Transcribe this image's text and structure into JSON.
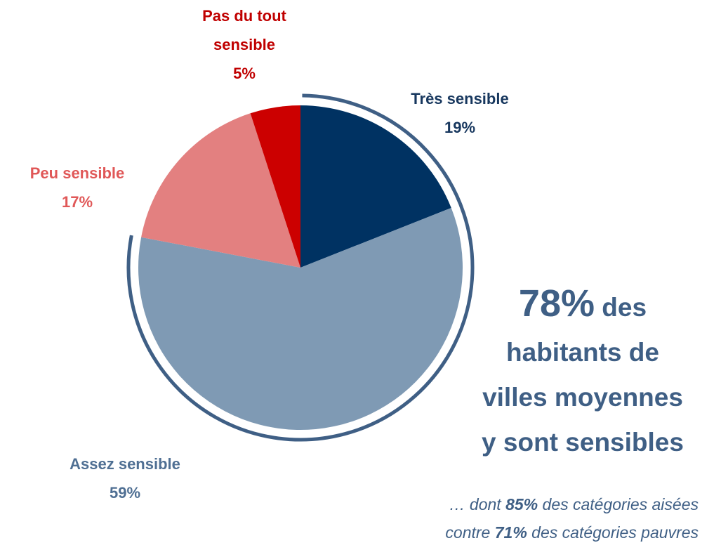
{
  "chart_data": {
    "type": "pie",
    "categories": [
      "Très sensible",
      "Assez sensible",
      "Peu sensible",
      "Pas du tout sensible"
    ],
    "values": [
      19,
      59,
      17,
      5
    ],
    "value_labels": [
      "19%",
      "59%",
      "17%",
      "5%"
    ],
    "colors": [
      "#003262",
      "#7f9ab4",
      "#e38080",
      "#cc0000"
    ],
    "label_colors": [
      "#17375e",
      "#4f6f93",
      "#e05858",
      "#c00000"
    ],
    "headline": {
      "big": "78%",
      "small": "des",
      "lines": [
        "habitants de",
        "villes moyennes",
        "y sont sensibles"
      ]
    },
    "note": [
      [
        "… dont ",
        "85%",
        " des catégories aisées"
      ],
      [
        "contre ",
        "71%",
        " des catégories pauvres"
      ]
    ]
  }
}
